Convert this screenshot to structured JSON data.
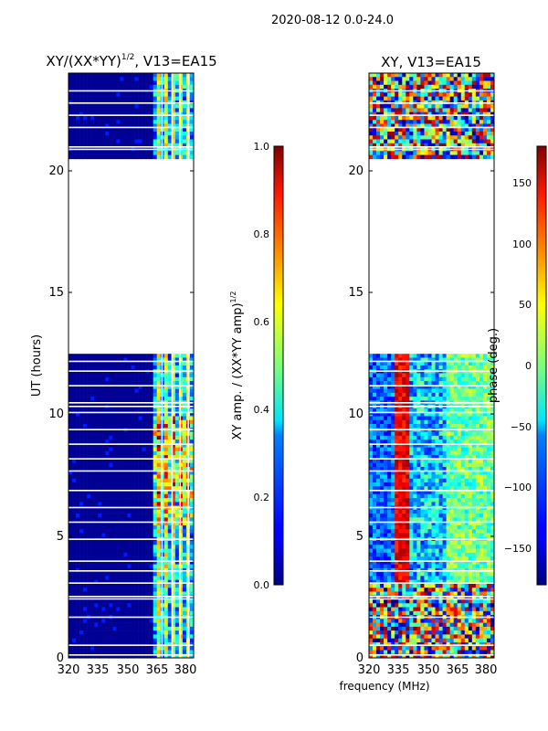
{
  "suptitle": "2020-08-12 0.0-24.0",
  "shared_xlabel": "frequency (MHz)",
  "colors": {
    "background_fill": "#00007f",
    "axis": "#000000"
  },
  "chart_data": [
    {
      "type": "heatmap",
      "title_main": "XY/(XX*YY)",
      "title_sup": "1/2",
      "title_tail": ", V13=EA15",
      "xlabel": "",
      "ylabel": "UT (hours)",
      "x_ticks": [
        "320",
        "335",
        "350",
        "365",
        "380"
      ],
      "y_ticks": [
        "0",
        "5",
        "10",
        "15",
        "20"
      ],
      "xlim": [
        320,
        382
      ],
      "ylim": [
        0,
        24
      ],
      "data_gaps_hours": [
        [
          12.5,
          20.4
        ]
      ],
      "colormap": "jet",
      "colorbar": {
        "label_main": "XY amp. / (XX*YY amp)",
        "label_sup": "1/2",
        "range": [
          0.0,
          1.0
        ],
        "ticks": [
          "0.0",
          "0.2",
          "0.4",
          "0.6",
          "0.8",
          "1.0"
        ]
      }
    },
    {
      "type": "heatmap",
      "title": "XY, V13=EA15",
      "xlabel": "frequency (MHz)",
      "ylabel": "",
      "x_ticks": [
        "320",
        "335",
        "350",
        "365",
        "380"
      ],
      "y_ticks": [
        "0",
        "5",
        "10",
        "15",
        "20"
      ],
      "xlim": [
        320,
        382
      ],
      "ylim": [
        0,
        24
      ],
      "data_gaps_hours": [
        [
          12.5,
          20.4
        ]
      ],
      "colormap": "jet",
      "colorbar": {
        "label": "phase (deg.)",
        "range": [
          -180,
          180
        ],
        "ticks": [
          "−150",
          "−100",
          "−50",
          "0",
          "50",
          "100",
          "150"
        ]
      }
    }
  ]
}
